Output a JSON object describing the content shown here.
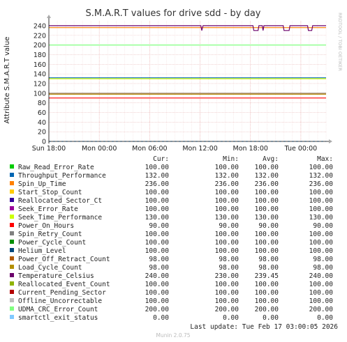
{
  "chart_data": {
    "type": "line",
    "title": "S.M.A.R.T values for drive sdd - by day",
    "ylabel": "Attribute S.M.A.R.T value",
    "side_label": "RRDTOOL / TOBI OETIKER",
    "ylim": [
      0,
      250
    ],
    "yticks": [
      0,
      20,
      40,
      60,
      80,
      100,
      120,
      140,
      160,
      180,
      200,
      220,
      240
    ],
    "xlim": [
      0,
      33
    ],
    "xticks": [
      {
        "x": 0,
        "label": "Sun 18:00"
      },
      {
        "x": 6,
        "label": "Mon 00:00"
      },
      {
        "x": 12,
        "label": "Mon 06:00"
      },
      {
        "x": 18,
        "label": "Mon 12:00"
      },
      {
        "x": 24,
        "label": "Mon 18:00"
      },
      {
        "x": 30,
        "label": "Tue 00:00"
      }
    ],
    "grid": true,
    "legend_headers": {
      "cur": "Cur:",
      "min": "Min:",
      "avg": "Avg:",
      "max": "Max:"
    },
    "series": [
      {
        "name": "Raw_Read_Error_Rate",
        "color": "#00cc00",
        "cur": "100.00",
        "min": "100.00",
        "avg": "100.00",
        "max": "100.00",
        "y": 100
      },
      {
        "name": "Throughput_Performance",
        "color": "#0066b3",
        "cur": "132.00",
        "min": "132.00",
        "avg": "132.00",
        "max": "132.00",
        "y": 132
      },
      {
        "name": "Spin_Up_Time",
        "color": "#ff8000",
        "cur": "236.00",
        "min": "236.00",
        "avg": "236.00",
        "max": "236.00",
        "y": 236
      },
      {
        "name": "Start_Stop_Count",
        "color": "#ffcc00",
        "cur": "100.00",
        "min": "100.00",
        "avg": "100.00",
        "max": "100.00",
        "y": 100
      },
      {
        "name": "Reallocated_Sector_Ct",
        "color": "#330099",
        "cur": "100.00",
        "min": "100.00",
        "avg": "100.00",
        "max": "100.00",
        "y": 100
      },
      {
        "name": "Seek_Error_Rate",
        "color": "#990099",
        "cur": "100.00",
        "min": "100.00",
        "avg": "100.00",
        "max": "100.00",
        "y": 100
      },
      {
        "name": "Seek_Time_Performance",
        "color": "#ccff00",
        "cur": "130.00",
        "min": "130.00",
        "avg": "130.00",
        "max": "130.00",
        "y": 130
      },
      {
        "name": "Power_On_Hours",
        "color": "#ff0000",
        "cur": "90.00",
        "min": "90.00",
        "avg": "90.00",
        "max": "90.00",
        "y": 90
      },
      {
        "name": "Spin_Retry_Count",
        "color": "#808080",
        "cur": "100.00",
        "min": "100.00",
        "avg": "100.00",
        "max": "100.00",
        "y": 100
      },
      {
        "name": "Power_Cycle_Count",
        "color": "#008f00",
        "cur": "100.00",
        "min": "100.00",
        "avg": "100.00",
        "max": "100.00",
        "y": 100
      },
      {
        "name": "Helium_Level",
        "color": "#00487d",
        "cur": "100.00",
        "min": "100.00",
        "avg": "100.00",
        "max": "100.00",
        "y": 100
      },
      {
        "name": "Power_Off_Retract_Count",
        "color": "#b35a00",
        "cur": "98.00",
        "min": "98.00",
        "avg": "98.00",
        "max": "98.00",
        "y": 98
      },
      {
        "name": "Load_Cycle_Count",
        "color": "#b38f00",
        "cur": "98.00",
        "min": "98.00",
        "avg": "98.00",
        "max": "98.00",
        "y": 98
      },
      {
        "name": "Temperature_Celsius",
        "color": "#6b006b",
        "cur": "240.00",
        "min": "230.00",
        "avg": "239.45",
        "max": "240.00",
        "y": 240,
        "points": [
          [
            0,
            240
          ],
          [
            18.1,
            240
          ],
          [
            18.2,
            230
          ],
          [
            18.35,
            240
          ],
          [
            24.3,
            240
          ],
          [
            24.4,
            230
          ],
          [
            24.9,
            230
          ],
          [
            25.0,
            240
          ],
          [
            25.4,
            240
          ],
          [
            25.5,
            230
          ],
          [
            25.6,
            240
          ],
          [
            27.9,
            240
          ],
          [
            28.0,
            230
          ],
          [
            28.6,
            230
          ],
          [
            28.7,
            240
          ],
          [
            30.8,
            240
          ],
          [
            30.9,
            230
          ],
          [
            31.3,
            230
          ],
          [
            31.4,
            240
          ],
          [
            33,
            240
          ]
        ]
      },
      {
        "name": "Reallocated_Event_Count",
        "color": "#8fb300",
        "cur": "100.00",
        "min": "100.00",
        "avg": "100.00",
        "max": "100.00",
        "y": 100
      },
      {
        "name": "Current_Pending_Sector",
        "color": "#b30000",
        "cur": "100.00",
        "min": "100.00",
        "avg": "100.00",
        "max": "100.00",
        "y": 100
      },
      {
        "name": "Offline_Uncorrectable",
        "color": "#bebebe",
        "cur": "100.00",
        "min": "100.00",
        "avg": "100.00",
        "max": "100.00",
        "y": 100
      },
      {
        "name": "UDMA_CRC_Error_Count",
        "color": "#80ff80",
        "cur": "200.00",
        "min": "200.00",
        "avg": "200.00",
        "max": "200.00",
        "y": 200
      },
      {
        "name": "smartctl_exit_status",
        "color": "#80c9ff",
        "cur": "0.00",
        "min": "0.00",
        "avg": "0.00",
        "max": "0.00",
        "y": 0,
        "dashed": true
      }
    ],
    "last_update": "Last update: Tue Feb 17 03:00:05 2026",
    "footer": "Munin 2.0.75"
  }
}
